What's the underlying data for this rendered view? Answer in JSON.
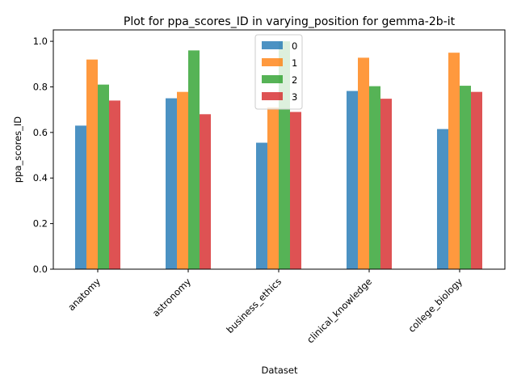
{
  "chart_data": {
    "type": "bar",
    "title": "Plot for ppa_scores_ID in varying_position for gemma-2b-it",
    "xlabel": "Dataset",
    "ylabel": "ppa_scores_ID",
    "categories": [
      "anatomy",
      "astronomy",
      "business_ethics",
      "clinical_knowledge",
      "college_biology"
    ],
    "ylim": [
      0,
      1.05
    ],
    "yticks": [
      0.0,
      0.2,
      0.4,
      0.6,
      0.8,
      1.0
    ],
    "ytick_labels": [
      "0.0",
      "0.2",
      "0.4",
      "0.6",
      "0.8",
      "1.0"
    ],
    "grid": false,
    "legend_position": "top-center",
    "series": [
      {
        "name": "0",
        "color": "#1f77b4",
        "values": [
          0.63,
          0.75,
          0.555,
          0.782,
          0.615
        ]
      },
      {
        "name": "1",
        "color": "#ff7f0e",
        "values": [
          0.92,
          0.778,
          0.71,
          0.928,
          0.95
        ]
      },
      {
        "name": "2",
        "color": "#2ca02c",
        "values": [
          0.81,
          0.96,
          1.0,
          0.803,
          0.805
        ]
      },
      {
        "name": "3",
        "color": "#d62728",
        "values": [
          0.74,
          0.68,
          0.69,
          0.748,
          0.778
        ]
      }
    ],
    "bar_alpha": 0.8
  }
}
